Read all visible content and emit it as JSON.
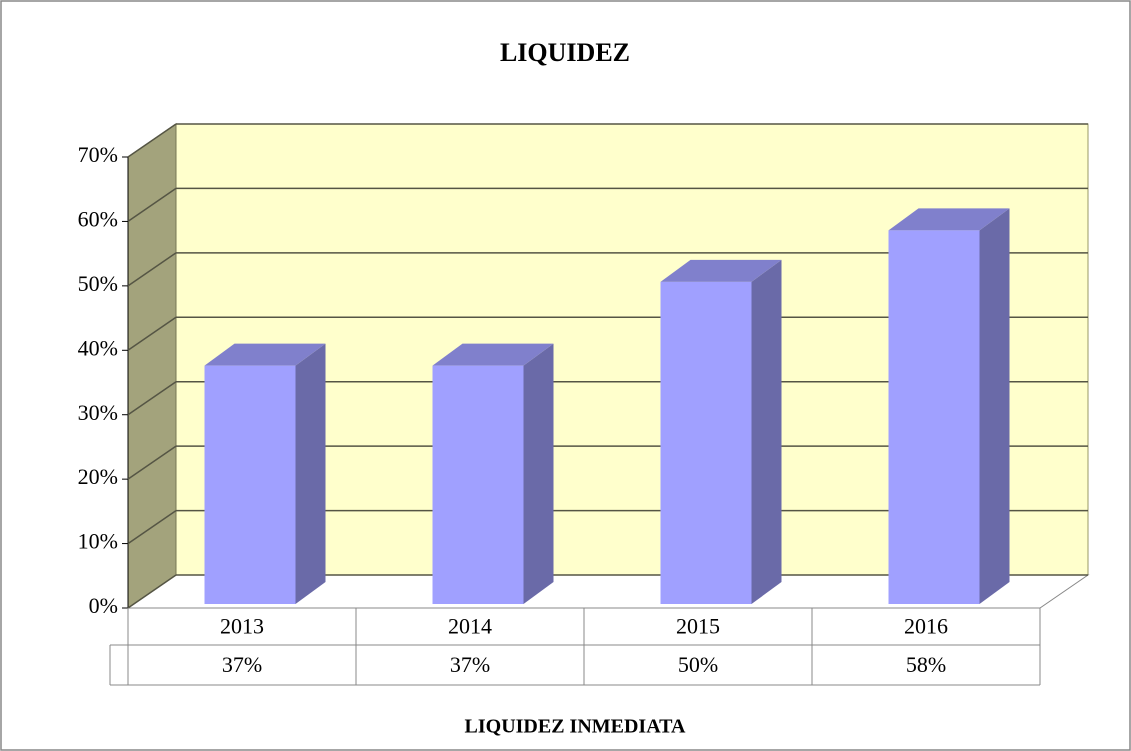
{
  "chart_data": {
    "type": "bar3d",
    "title": "LIQUIDEZ",
    "x_label": "LIQUIDEZ  INMEDIATA",
    "categories": [
      "2013",
      "2014",
      "2015",
      "2016"
    ],
    "values": [
      37,
      37,
      50,
      58
    ],
    "value_labels": [
      "37%",
      "37%",
      "50%",
      "58%"
    ],
    "color": "#a0a0ff",
    "ylim": [
      0,
      70
    ],
    "yticks": [
      {
        "value": 0,
        "label": "0%"
      },
      {
        "value": 10,
        "label": "10%"
      },
      {
        "value": 20,
        "label": "20%"
      },
      {
        "value": 30,
        "label": "30%"
      },
      {
        "value": 40,
        "label": "40%"
      },
      {
        "value": 50,
        "label": "50%"
      },
      {
        "value": 60,
        "label": "60%"
      },
      {
        "value": 70,
        "label": "70%"
      }
    ],
    "grid": true
  }
}
